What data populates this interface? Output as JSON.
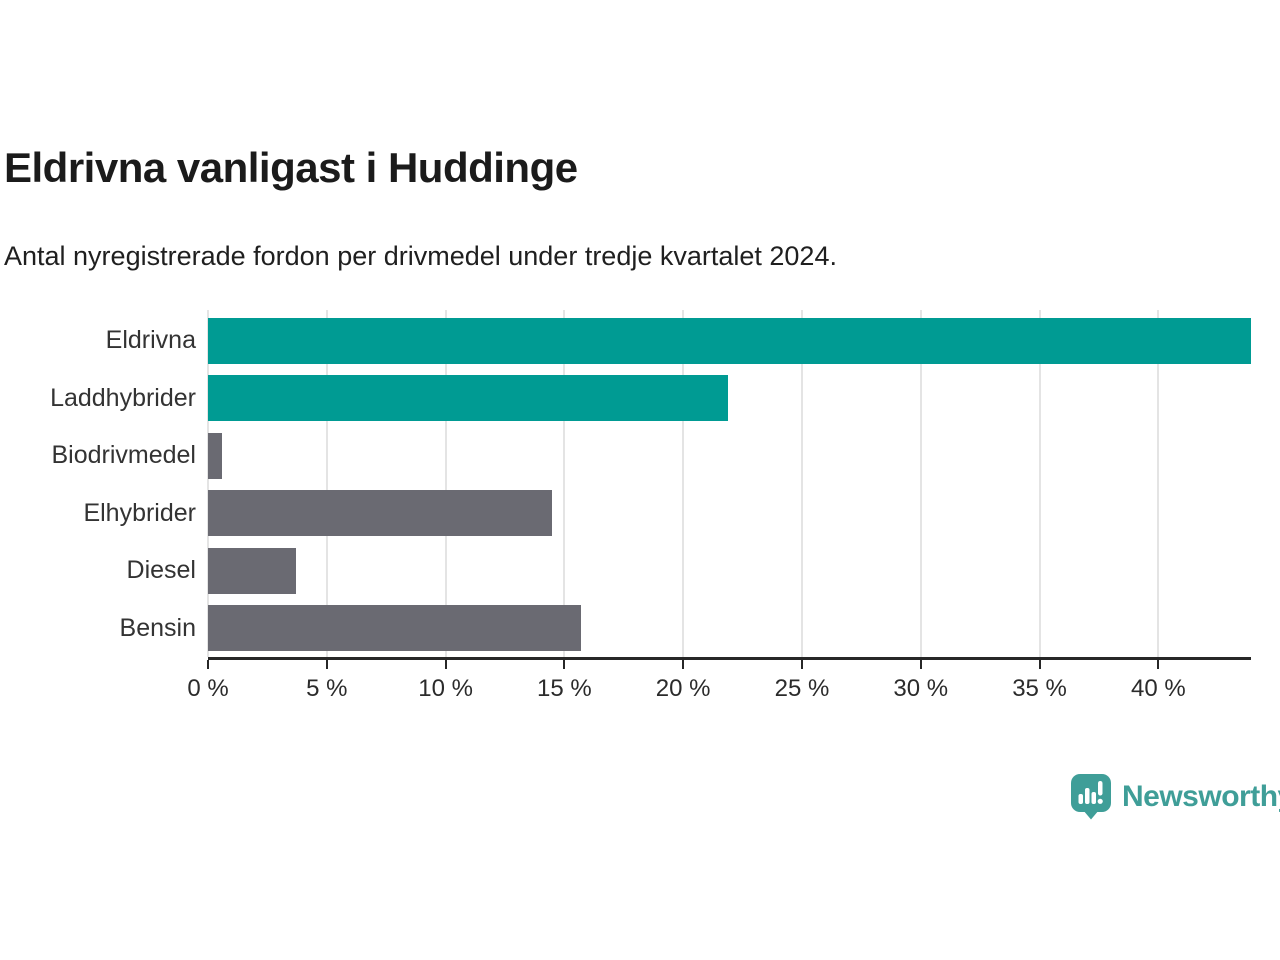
{
  "header": {
    "title": "Eldrivna vanligast i Huddinge",
    "subtitle": "Antal nyregistrerade fordon per drivmedel under tredje kvartalet 2024."
  },
  "chart_data": {
    "type": "bar",
    "orientation": "horizontal",
    "title": "Eldrivna vanligast i Huddinge",
    "subtitle": "Antal nyregistrerade fordon per drivmedel under tredje kvartalet 2024.",
    "categories": [
      "Eldrivna",
      "Laddhybrider",
      "Biodrivmedel",
      "Elhybrider",
      "Diesel",
      "Bensin"
    ],
    "values": [
      43.9,
      21.9,
      0.6,
      14.5,
      3.7,
      15.7
    ],
    "bar_colors": [
      "#009B93",
      "#009B93",
      "#6A6A72",
      "#6A6A72",
      "#6A6A72",
      "#6A6A72"
    ],
    "xlabel": "",
    "ylabel": "",
    "xlim": [
      0,
      43.9
    ],
    "x_ticks": [
      0,
      5,
      10,
      15,
      20,
      25,
      30,
      35,
      40
    ],
    "x_tick_labels": [
      "0 %",
      "5 %",
      "10 %",
      "15 %",
      "20 %",
      "25 %",
      "30 %",
      "35 %",
      "40 %"
    ],
    "unit": "%",
    "grid": true,
    "legend": false
  },
  "colors": {
    "accent_teal": "#009B93",
    "neutral_gray": "#6A6A72",
    "gridline": "#E4E4E4",
    "axis": "#272727",
    "title_text": "#1b1b1b",
    "label_text": "#333333",
    "brand_teal": "#3F9E98"
  },
  "footer": {
    "brand": "Newsworthy",
    "logo_icon": "speech-bubble-bar-chart-icon"
  }
}
